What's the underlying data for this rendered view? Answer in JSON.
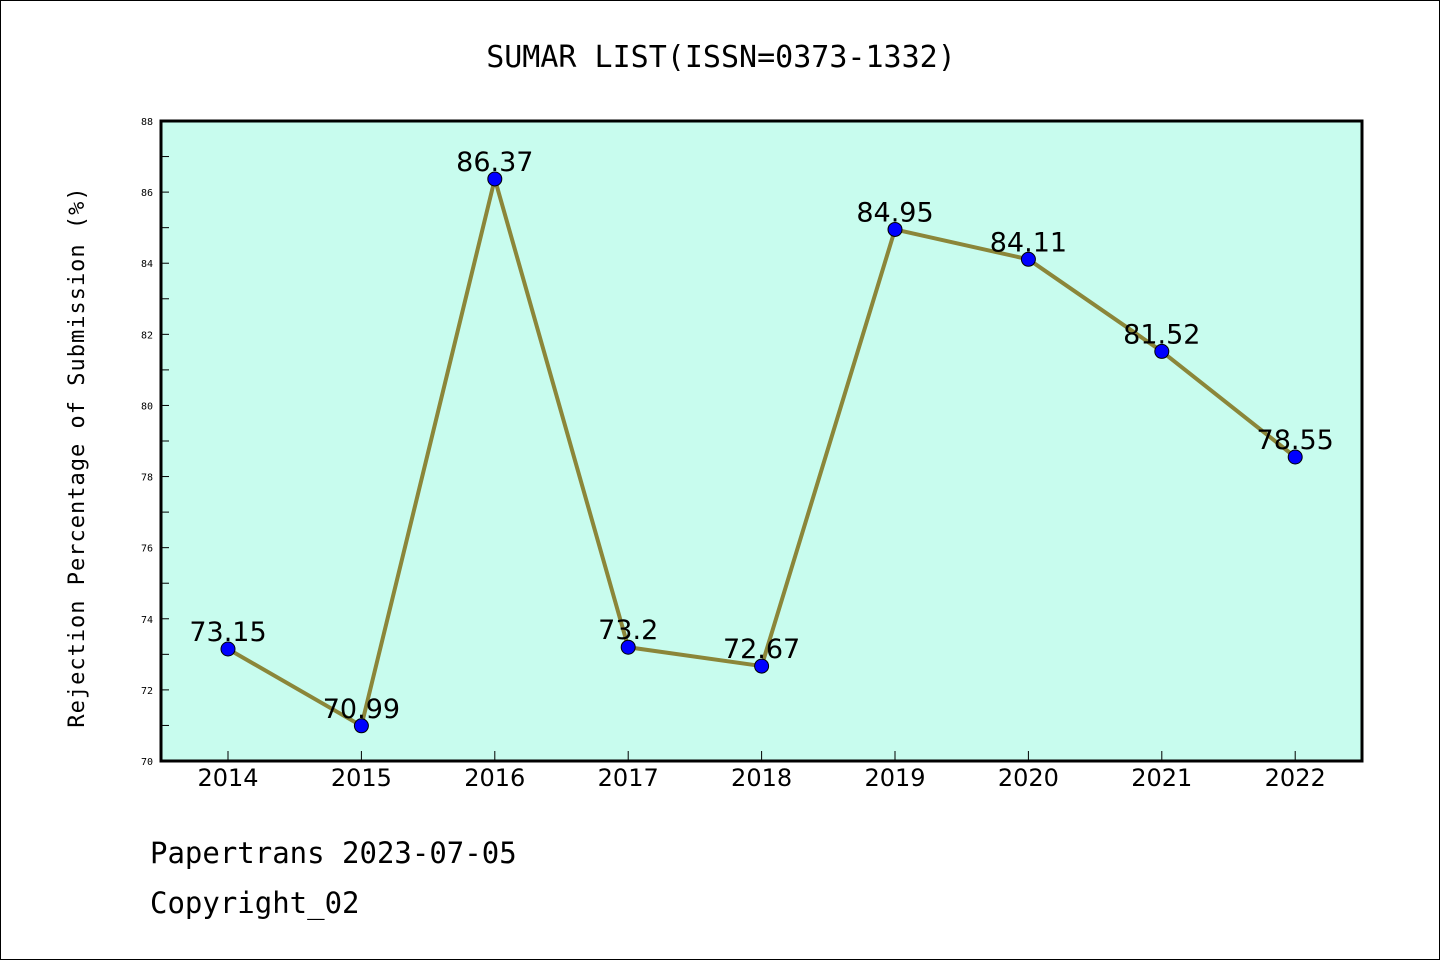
{
  "colors": {
    "plot_background": "#c8fcee",
    "line": "#8b8639",
    "marker": "#0000ff",
    "frame": "#000000"
  },
  "chart_data": {
    "type": "line",
    "title": "SUMAR LIST(ISSN=0373-1332)",
    "xlabel": "",
    "ylabel": "Rejection Percentage of Submission (%)",
    "categories": [
      "2014",
      "2015",
      "2016",
      "2017",
      "2018",
      "2019",
      "2020",
      "2021",
      "2022"
    ],
    "series": [
      {
        "values": [
          73.15,
          70.99,
          86.37,
          73.2,
          72.67,
          84.95,
          84.11,
          81.52,
          78.55
        ],
        "labels": [
          "73.15",
          "70.99",
          "86.37",
          "73.2",
          "72.67",
          "84.95",
          "84.11",
          "81.52",
          "78.55"
        ]
      }
    ],
    "ylim": [
      70,
      88
    ],
    "yticks": [
      70,
      72,
      74,
      76,
      78,
      80,
      82,
      84,
      86,
      88
    ],
    "grid": false,
    "legend": "none"
  },
  "footer": {
    "date_line": "Papertrans 2023-07-05",
    "copyright_line": "Copyright_02"
  }
}
